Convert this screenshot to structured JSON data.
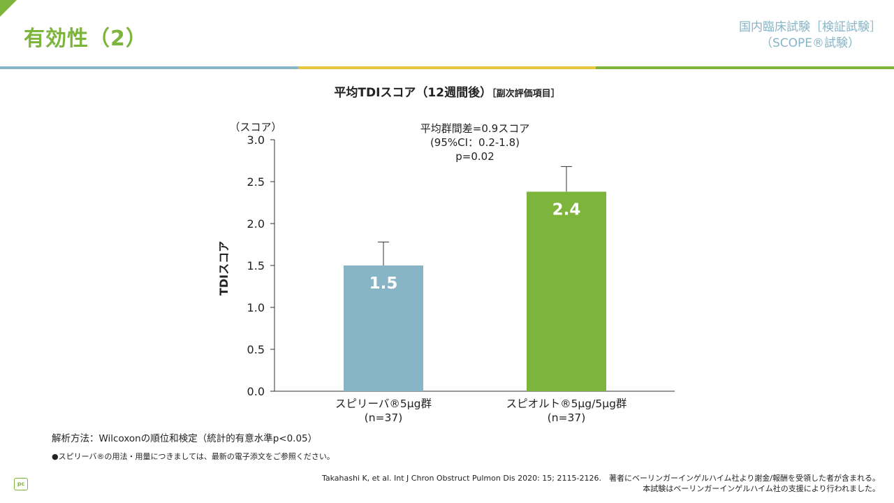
{
  "header": {
    "title": "有効性（2）",
    "study_line1": "国内臨床試験［検証試験］",
    "study_line2": "（SCOPE®試験）"
  },
  "chart_header": {
    "title": "平均TDIスコア（12週間後）",
    "subtitle": "［副次評価項目］"
  },
  "chart_data": {
    "type": "bar",
    "unit_label": "（スコア）",
    "ylabel": "TDIスコア",
    "ylim": [
      0,
      3.0
    ],
    "yticks": [
      "0.0",
      "0.5",
      "1.0",
      "1.5",
      "2.0",
      "2.5",
      "3.0"
    ],
    "categories": [
      {
        "name": "スピリーバ®5μg群",
        "n": "(n=37)"
      },
      {
        "name": "スピオルト®5μg/5μg群",
        "n": "(n=37)"
      }
    ],
    "values": [
      1.5,
      2.38
    ],
    "value_labels": [
      "1.5",
      "2.4"
    ],
    "error_upper": [
      1.78,
      2.68
    ],
    "colors": [
      "#87b5c6",
      "#7db43c"
    ],
    "annotation": [
      "平均群間差=0.9スコア",
      "(95%CI：0.2-1.8)",
      "p=0.02"
    ]
  },
  "footnotes": {
    "method": "解析方法：Wilcoxonの順位和検定（統計的有意水準p<0.05）",
    "note": "●スピリーバ®の用法・用量につきましては、最新の電子添文をご参照ください。"
  },
  "logo_text": "pc",
  "reference": {
    "line1": "Takahashi K, et al. Int J Chron Obstruct Pulmon Dis 2020: 15; 2115-2126.　著者にベーリンガーインゲルハイム社より謝金/報酬を受領した者が含まれる。",
    "line2": "本試験はベーリンガーインゲルハイム社の支援により行われました。"
  }
}
